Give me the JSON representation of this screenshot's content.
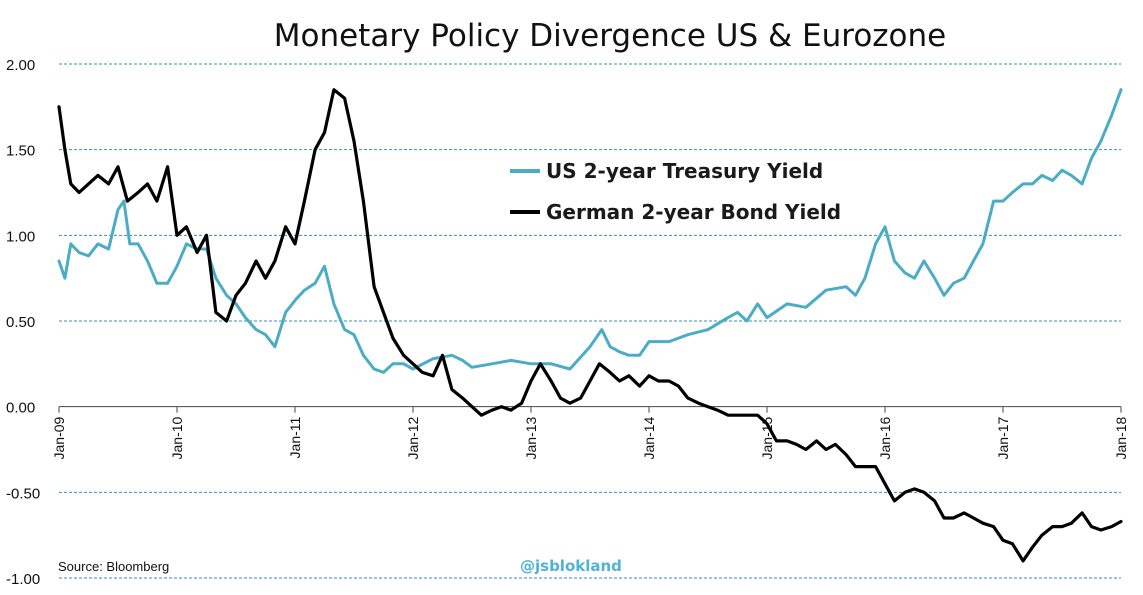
{
  "chart_data": {
    "type": "line",
    "title": "Monetary Policy Divergence US & Eurozone",
    "xlabel": "",
    "ylabel": "",
    "ylim": [
      -1.0,
      2.0
    ],
    "y_ticks": [
      2.0,
      1.5,
      1.0,
      0.5,
      0.0,
      -0.5,
      -1.0
    ],
    "y_tick_labels": [
      "2.00",
      "1.50",
      "1.00",
      "0.50",
      "0.00",
      "-0.50",
      "-1.00"
    ],
    "x_range": [
      2009,
      2018
    ],
    "x_ticks": [
      2009,
      2010,
      2011,
      2012,
      2013,
      2014,
      2015,
      2016,
      2017,
      2018
    ],
    "x_tick_labels": [
      "Jan-09",
      "Jan-10",
      "Jan-11",
      "Jan-12",
      "Jan-13",
      "Jan-14",
      "Jan-15",
      "Jan-16",
      "Jan-17",
      "Jan-18"
    ],
    "grid": true,
    "legend_position": "top-center",
    "series": [
      {
        "name": "US 2-year Treasury Yield",
        "color": "#4bacc6",
        "x": [
          2009.0,
          2009.05,
          2009.1,
          2009.17,
          2009.25,
          2009.33,
          2009.42,
          2009.5,
          2009.55,
          2009.6,
          2009.67,
          2009.75,
          2009.83,
          2009.92,
          2010.0,
          2010.08,
          2010.17,
          2010.25,
          2010.33,
          2010.42,
          2010.5,
          2010.58,
          2010.67,
          2010.75,
          2010.83,
          2010.92,
          2011.0,
          2011.08,
          2011.17,
          2011.25,
          2011.33,
          2011.42,
          2011.5,
          2011.58,
          2011.67,
          2011.75,
          2011.83,
          2011.92,
          2012.0,
          2012.17,
          2012.33,
          2012.42,
          2012.5,
          2012.67,
          2012.83,
          2013.0,
          2013.17,
          2013.33,
          2013.5,
          2013.6,
          2013.67,
          2013.75,
          2013.83,
          2013.92,
          2014.0,
          2014.17,
          2014.33,
          2014.5,
          2014.67,
          2014.75,
          2014.83,
          2014.92,
          2015.0,
          2015.17,
          2015.33,
          2015.5,
          2015.67,
          2015.75,
          2015.83,
          2015.92,
          2016.0,
          2016.08,
          2016.17,
          2016.25,
          2016.33,
          2016.42,
          2016.5,
          2016.58,
          2016.67,
          2016.75,
          2016.83,
          2016.92,
          2017.0,
          2017.08,
          2017.17,
          2017.25,
          2017.33,
          2017.42,
          2017.5,
          2017.58,
          2017.67,
          2017.75,
          2017.83,
          2017.92,
          2018.0
        ],
        "values": [
          0.85,
          0.75,
          0.95,
          0.9,
          0.88,
          0.95,
          0.92,
          1.15,
          1.2,
          0.95,
          0.95,
          0.85,
          0.72,
          0.72,
          0.82,
          0.95,
          0.92,
          0.92,
          0.75,
          0.65,
          0.6,
          0.52,
          0.45,
          0.42,
          0.35,
          0.55,
          0.62,
          0.68,
          0.72,
          0.82,
          0.6,
          0.45,
          0.42,
          0.3,
          0.22,
          0.2,
          0.25,
          0.25,
          0.22,
          0.28,
          0.3,
          0.27,
          0.23,
          0.25,
          0.27,
          0.25,
          0.25,
          0.22,
          0.35,
          0.45,
          0.35,
          0.32,
          0.3,
          0.3,
          0.38,
          0.38,
          0.42,
          0.45,
          0.52,
          0.55,
          0.5,
          0.6,
          0.52,
          0.6,
          0.58,
          0.68,
          0.7,
          0.65,
          0.75,
          0.95,
          1.05,
          0.85,
          0.78,
          0.75,
          0.85,
          0.75,
          0.65,
          0.72,
          0.75,
          0.85,
          0.95,
          1.2,
          1.2,
          1.25,
          1.3,
          1.3,
          1.35,
          1.32,
          1.38,
          1.35,
          1.3,
          1.45,
          1.55,
          1.7,
          1.85
        ]
      },
      {
        "name": "German 2-year Bond Yield",
        "color": "#000000",
        "x": [
          2009.0,
          2009.05,
          2009.1,
          2009.17,
          2009.25,
          2009.33,
          2009.42,
          2009.5,
          2009.58,
          2009.67,
          2009.75,
          2009.83,
          2009.92,
          2010.0,
          2010.08,
          2010.17,
          2010.25,
          2010.33,
          2010.42,
          2010.5,
          2010.58,
          2010.67,
          2010.75,
          2010.83,
          2010.92,
          2011.0,
          2011.08,
          2011.17,
          2011.25,
          2011.33,
          2011.42,
          2011.5,
          2011.58,
          2011.67,
          2011.75,
          2011.83,
          2011.92,
          2012.0,
          2012.08,
          2012.17,
          2012.25,
          2012.33,
          2012.42,
          2012.5,
          2012.58,
          2012.67,
          2012.75,
          2012.83,
          2012.92,
          2013.0,
          2013.08,
          2013.17,
          2013.25,
          2013.33,
          2013.42,
          2013.5,
          2013.58,
          2013.67,
          2013.75,
          2013.83,
          2013.92,
          2014.0,
          2014.08,
          2014.17,
          2014.25,
          2014.33,
          2014.42,
          2014.5,
          2014.58,
          2014.67,
          2014.75,
          2014.83,
          2014.92,
          2015.0,
          2015.08,
          2015.17,
          2015.25,
          2015.33,
          2015.42,
          2015.5,
          2015.58,
          2015.67,
          2015.75,
          2015.83,
          2015.92,
          2016.0,
          2016.08,
          2016.17,
          2016.25,
          2016.33,
          2016.42,
          2016.5,
          2016.58,
          2016.67,
          2016.75,
          2016.83,
          2016.92,
          2017.0,
          2017.08,
          2017.17,
          2017.25,
          2017.33,
          2017.42,
          2017.5,
          2017.58,
          2017.67,
          2017.75,
          2017.83,
          2017.92,
          2018.0
        ],
        "values": [
          1.75,
          1.5,
          1.3,
          1.25,
          1.3,
          1.35,
          1.3,
          1.4,
          1.2,
          1.25,
          1.3,
          1.2,
          1.4,
          1.0,
          1.05,
          0.9,
          1.0,
          0.55,
          0.5,
          0.65,
          0.72,
          0.85,
          0.75,
          0.85,
          1.05,
          0.95,
          1.2,
          1.5,
          1.6,
          1.85,
          1.8,
          1.55,
          1.2,
          0.7,
          0.55,
          0.4,
          0.3,
          0.25,
          0.2,
          0.18,
          0.3,
          0.1,
          0.05,
          0.0,
          -0.05,
          -0.02,
          0.0,
          -0.02,
          0.02,
          0.15,
          0.25,
          0.15,
          0.05,
          0.02,
          0.05,
          0.15,
          0.25,
          0.2,
          0.15,
          0.18,
          0.12,
          0.18,
          0.15,
          0.15,
          0.12,
          0.05,
          0.02,
          0.0,
          -0.02,
          -0.05,
          -0.05,
          -0.05,
          -0.05,
          -0.1,
          -0.2,
          -0.2,
          -0.22,
          -0.25,
          -0.2,
          -0.25,
          -0.22,
          -0.28,
          -0.35,
          -0.35,
          -0.35,
          -0.45,
          -0.55,
          -0.5,
          -0.48,
          -0.5,
          -0.55,
          -0.65,
          -0.65,
          -0.62,
          -0.65,
          -0.68,
          -0.7,
          -0.78,
          -0.8,
          -0.9,
          -0.82,
          -0.75,
          -0.7,
          -0.7,
          -0.68,
          -0.62,
          -0.7,
          -0.72,
          -0.7,
          -0.67
        ]
      }
    ]
  },
  "annotations": {
    "source": "Source:  Bloomberg",
    "handle": "@jsblokland"
  }
}
